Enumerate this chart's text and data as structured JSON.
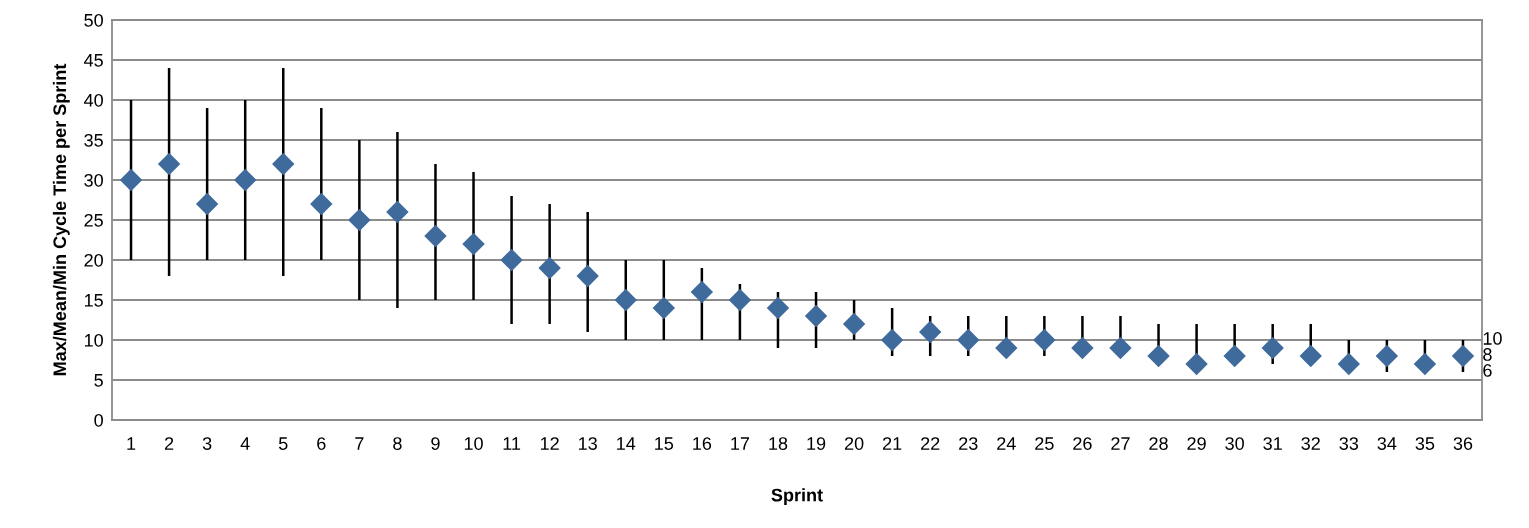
{
  "chart_data": {
    "type": "scatter",
    "xlabel": "Sprint",
    "ylabel": "Max/Mean/Min Cycle Time per Sprint",
    "categories": [
      "1",
      "2",
      "3",
      "4",
      "5",
      "6",
      "7",
      "8",
      "9",
      "10",
      "11",
      "12",
      "13",
      "14",
      "15",
      "16",
      "17",
      "18",
      "19",
      "20",
      "21",
      "22",
      "23",
      "24",
      "25",
      "26",
      "27",
      "28",
      "29",
      "30",
      "31",
      "32",
      "33",
      "34",
      "35",
      "36"
    ],
    "values": [
      30,
      32,
      27,
      30,
      32,
      27,
      25,
      26,
      23,
      22,
      20,
      19,
      18,
      15,
      14,
      16,
      15,
      14,
      13,
      12,
      10,
      11,
      10,
      9,
      10,
      9,
      9,
      8,
      7,
      8,
      9,
      8,
      7,
      8,
      7,
      8
    ],
    "errors": [
      [
        20,
        40
      ],
      [
        18,
        44
      ],
      [
        20,
        39
      ],
      [
        20,
        40
      ],
      [
        18,
        44
      ],
      [
        20,
        39
      ],
      [
        15,
        35
      ],
      [
        14,
        36
      ],
      [
        15,
        32
      ],
      [
        15,
        31
      ],
      [
        12,
        28
      ],
      [
        12,
        27
      ],
      [
        11,
        26
      ],
      [
        10,
        20
      ],
      [
        10,
        20
      ],
      [
        10,
        19
      ],
      [
        10,
        17
      ],
      [
        9,
        16
      ],
      [
        9,
        16
      ],
      [
        10,
        15
      ],
      [
        8,
        14
      ],
      [
        8,
        13
      ],
      [
        8,
        13
      ],
      [
        8,
        13
      ],
      [
        8,
        13
      ],
      [
        8,
        13
      ],
      [
        8,
        13
      ],
      [
        7,
        12
      ],
      [
        6,
        12
      ],
      [
        7,
        12
      ],
      [
        7,
        12
      ],
      [
        7,
        12
      ],
      [
        6,
        10
      ],
      [
        6,
        10
      ],
      [
        6,
        10
      ],
      [
        6,
        10
      ]
    ],
    "color": "#3f6a9c",
    "marker": "diamond",
    "ylim": [
      0,
      50
    ],
    "yticks": [
      0,
      5,
      10,
      15,
      20,
      25,
      30,
      35,
      40,
      45,
      50
    ],
    "grid": "y",
    "annotations": [
      {
        "text": "10",
        "x": "36",
        "y": 10
      },
      {
        "text": "8",
        "x": "36",
        "y": 8
      },
      {
        "text": "6",
        "x": "36",
        "y": 6
      }
    ]
  }
}
